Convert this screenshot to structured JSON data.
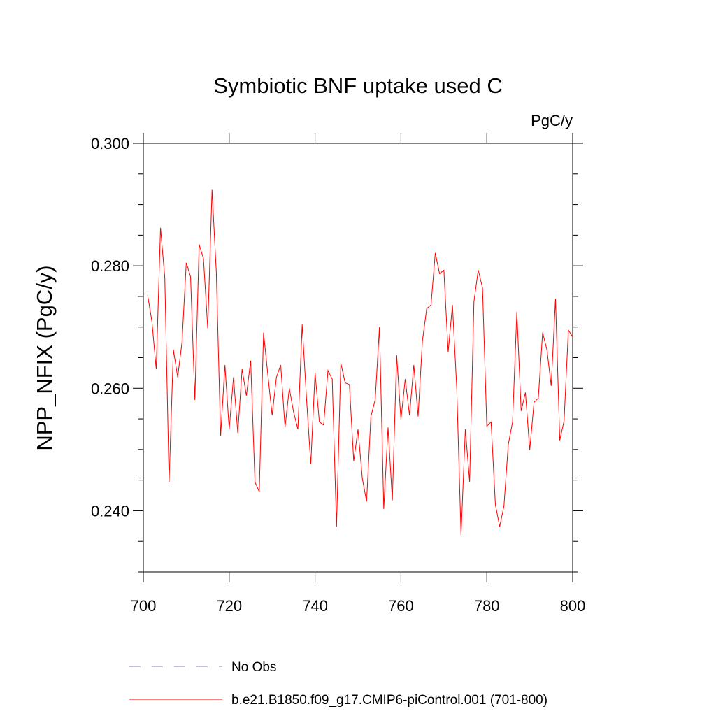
{
  "chart_data": {
    "type": "line",
    "title": "Symbiotic BNF uptake used C",
    "units": "PgC/y",
    "ylabel": "NPP_NFIX  (PgC/y)",
    "xlim": [
      700,
      800
    ],
    "xticks": [
      700,
      720,
      740,
      760,
      780,
      800
    ],
    "ylim": [
      0.23,
      0.3
    ],
    "yticks": [
      {
        "value": 0.24,
        "label": "0.240"
      },
      {
        "value": 0.26,
        "label": "0.260"
      },
      {
        "value": 0.28,
        "label": "0.280"
      },
      {
        "value": 0.3,
        "label": "0.300"
      }
    ],
    "yminorticks": [
      0.23,
      0.235,
      0.245,
      0.25,
      0.255,
      0.265,
      0.27,
      0.275,
      0.285,
      0.29,
      0.295
    ],
    "legend_extra": [
      {
        "name": "No Obs",
        "color": "#8080c0",
        "dashed": true
      }
    ],
    "x": [
      701,
      702,
      703,
      704,
      705,
      706,
      707,
      708,
      709,
      710,
      711,
      712,
      713,
      714,
      715,
      716,
      717,
      718,
      719,
      720,
      721,
      722,
      723,
      724,
      725,
      726,
      727,
      728,
      729,
      730,
      731,
      732,
      733,
      734,
      735,
      736,
      737,
      738,
      739,
      740,
      741,
      742,
      743,
      744,
      745,
      746,
      747,
      748,
      749,
      750,
      751,
      752,
      753,
      754,
      755,
      756,
      757,
      758,
      759,
      760,
      761,
      762,
      763,
      764,
      765,
      766,
      767,
      768,
      769,
      770,
      771,
      772,
      773,
      774,
      775,
      776,
      777,
      778,
      779,
      780,
      781,
      782,
      783,
      784,
      785,
      786,
      787,
      788,
      789,
      790,
      791,
      792,
      793,
      794,
      795,
      796,
      797,
      798,
      799,
      800
    ],
    "series": [
      {
        "name": "b.e21.B1850.f09_g17.CMIP6-piControl.001 (701-800)",
        "color": "#ff0000",
        "values": [
          0.2752,
          0.2709,
          0.2631,
          0.2862,
          0.278,
          0.2447,
          0.2663,
          0.2618,
          0.2675,
          0.2805,
          0.2782,
          0.2581,
          0.2835,
          0.2812,
          0.2698,
          0.2924,
          0.2789,
          0.2522,
          0.2638,
          0.2533,
          0.2618,
          0.2527,
          0.2631,
          0.2588,
          0.2645,
          0.2447,
          0.2431,
          0.2691,
          0.2622,
          0.2556,
          0.2618,
          0.2638,
          0.2536,
          0.26,
          0.2561,
          0.2533,
          0.2704,
          0.2584,
          0.2476,
          0.2625,
          0.2545,
          0.254,
          0.2629,
          0.2615,
          0.2374,
          0.2641,
          0.2609,
          0.2606,
          0.2481,
          0.2533,
          0.2453,
          0.2415,
          0.2554,
          0.2581,
          0.27,
          0.2403,
          0.2536,
          0.2417,
          0.2654,
          0.2549,
          0.2615,
          0.2556,
          0.2638,
          0.2554,
          0.2677,
          0.273,
          0.2736,
          0.2821,
          0.2787,
          0.2793,
          0.2659,
          0.2736,
          0.26,
          0.236,
          0.2533,
          0.2447,
          0.2741,
          0.2793,
          0.2764,
          0.2538,
          0.2545,
          0.241,
          0.2374,
          0.2408,
          0.2508,
          0.2545,
          0.2725,
          0.2563,
          0.2593,
          0.2499,
          0.2577,
          0.2584,
          0.2691,
          0.2663,
          0.2604,
          0.2746,
          0.2515,
          0.2547,
          0.2695,
          0.2684
        ]
      }
    ]
  }
}
